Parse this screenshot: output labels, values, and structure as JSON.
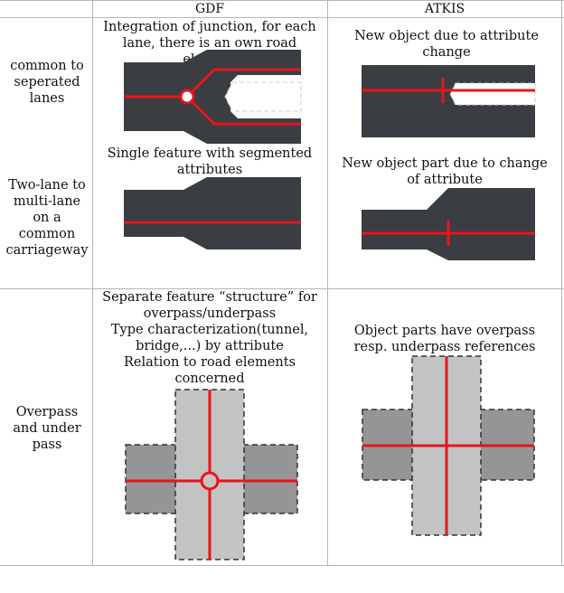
{
  "columns": {
    "gdf": "GDF",
    "atkis": "ATKIS"
  },
  "rows": {
    "separated": {
      "label": "common to seperated lanes",
      "gdf": "Integration of junction, for each lane, there is an own road element",
      "atkis": "New object due to attribute change"
    },
    "multilane": {
      "label": "Two-lane to multi-lane on a common carriageway",
      "gdf": "Single feature with segmented attributes",
      "atkis": "New object part due to change of attribute"
    },
    "overpass": {
      "label": "Overpass and under pass",
      "gdf_lines": [
        "Separate feature “structure” for",
        "overpass/underpass",
        "Type characterization(tunnel,",
        "bridge,...) by attribute",
        "Relation to road elements",
        "concerned"
      ],
      "atkis": "Object parts have overpass resp. underpass references"
    }
  },
  "colors": {
    "road": "#3a3d42",
    "centerline": "#e8141c",
    "structure_light": "#c3c3c3",
    "structure_dark": "#959595",
    "grid": "#b5b5b5"
  }
}
